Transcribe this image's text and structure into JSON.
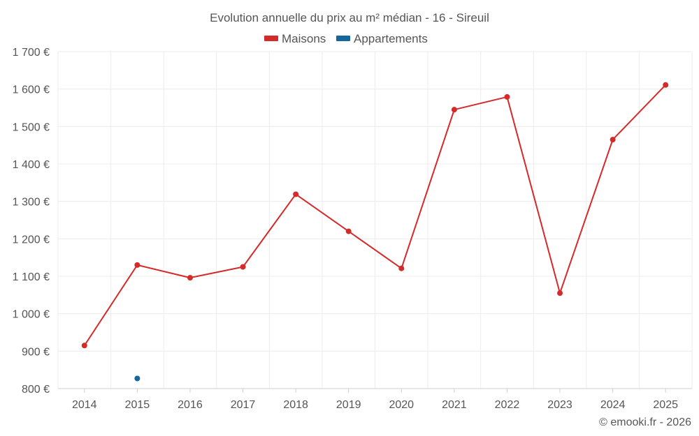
{
  "chart_data": {
    "type": "line",
    "title": "Evolution annuelle du prix au m² médian - 16 - Sireuil",
    "categories": [
      "2014",
      "2015",
      "2016",
      "2017",
      "2018",
      "2019",
      "2020",
      "2021",
      "2022",
      "2023",
      "2024",
      "2025"
    ],
    "series": [
      {
        "name": "Maisons",
        "color": "#d42a2a",
        "values": [
          915,
          1130,
          1096,
          1125,
          1319,
          1220,
          1121,
          1545,
          1579,
          1055,
          1465,
          1611
        ]
      },
      {
        "name": "Appartements",
        "color": "#13679c",
        "values": [
          null,
          827,
          null,
          null,
          null,
          null,
          null,
          null,
          null,
          null,
          null,
          null
        ]
      }
    ],
    "ylim": [
      800,
      1700
    ],
    "yticks": [
      800,
      900,
      1000,
      1100,
      1200,
      1300,
      1400,
      1500,
      1600,
      1700
    ],
    "ytick_labels": [
      "800 €",
      "900 €",
      "1 000 €",
      "1 100 €",
      "1 200 €",
      "1 300 €",
      "1 400 €",
      "1 500 €",
      "1 600 €",
      "1 700 €"
    ],
    "xlabel": "",
    "ylabel": "",
    "grid": true,
    "legend": "top-center"
  },
  "credit": "© emooki.fr - 2026"
}
